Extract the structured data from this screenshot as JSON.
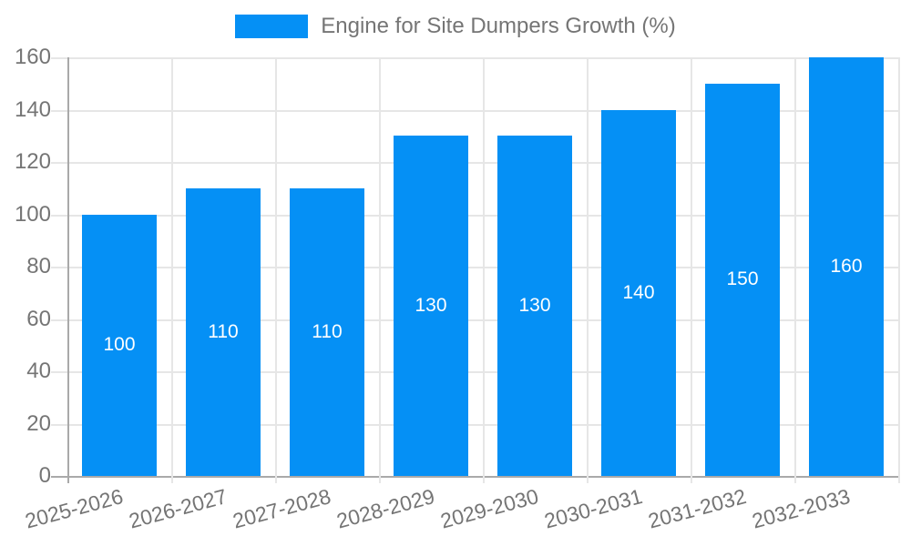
{
  "legend": {
    "label": "Engine for Site Dumpers Growth (%)",
    "position": "top-center"
  },
  "colors": {
    "bar": "#0590f5",
    "grid": "#e6e6e6",
    "axis": "#a9a9a9",
    "text": "#757575",
    "bar_label": "#ffffff",
    "background": "#ffffff"
  },
  "chart_data": {
    "type": "bar",
    "title": "Engine for Site Dumpers Growth (%)",
    "categories": [
      "2025-2026",
      "2026-2027",
      "2027-2028",
      "2028-2029",
      "2029-2030",
      "2030-2031",
      "2031-2032",
      "2032-2033"
    ],
    "values": [
      100,
      110,
      110,
      130,
      130,
      140,
      150,
      160
    ],
    "xlabel": "",
    "ylabel": "",
    "ylim": [
      0,
      160
    ],
    "yticks": [
      0,
      20,
      40,
      60,
      80,
      100,
      120,
      140,
      160
    ],
    "grid": true,
    "bar_value_labels_inside": true,
    "x_tick_rotation_deg": -15,
    "legend_position": "top"
  }
}
